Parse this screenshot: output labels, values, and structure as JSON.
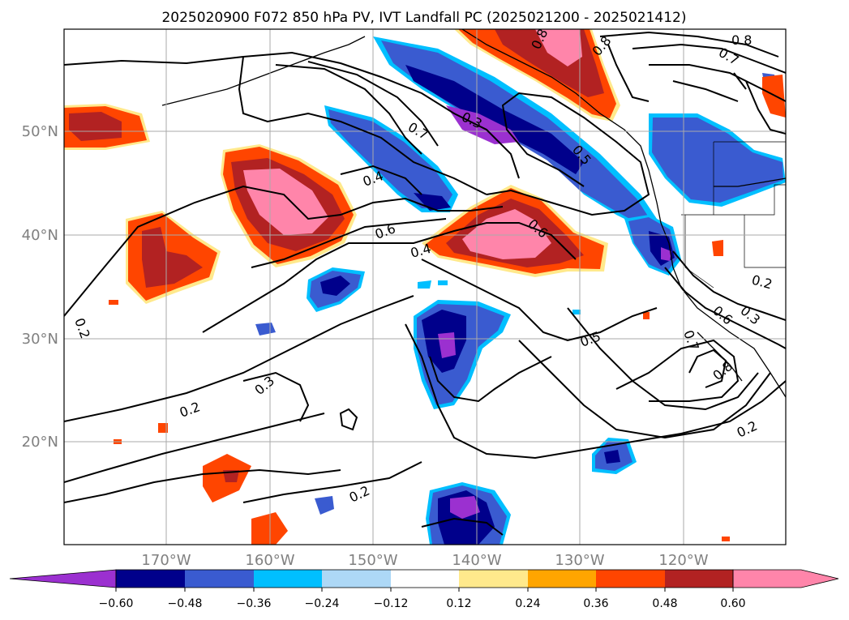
{
  "title": "2025020900 F072 850 hPa PV, IVT Landfall PC (2025021200 - 2025021412)",
  "lat_labels": [
    "50°N",
    "40°N",
    "30°N",
    "20°N"
  ],
  "lon_labels": [
    "170°W",
    "160°W",
    "150°W",
    "140°W",
    "130°W",
    "120°W"
  ],
  "colorbar": {
    "tick_labels": [
      "−0.60",
      "−0.48",
      "−0.36",
      "−0.24",
      "−0.12",
      "0.12",
      "0.24",
      "0.36",
      "0.48",
      "0.60"
    ],
    "colors": [
      "#9b30d0",
      "#00008b",
      "#3a5bd0",
      "#00bfff",
      "#add8f6",
      "#ffffff",
      "#ffe98c",
      "#ffa500",
      "#ff4500",
      "#b22222",
      "#ff85aa",
      "#ff85aa"
    ]
  },
  "contour_labels": [
    "0.8",
    "0.7",
    "0.8",
    "0.8",
    "0.5",
    "0.7",
    "0.4",
    "0.6",
    "0.4",
    "0.6",
    "0.5",
    "0.2",
    "0.3",
    "0.2",
    "0.3",
    "0.2",
    "0.2",
    "0.7",
    "0.6",
    "0.8",
    "0.3",
    "0.2"
  ],
  "fill_colors": {
    "neg_deep": "#9b30d0",
    "neg_dark": "#00008b",
    "neg_mid": "#3a5bd0",
    "neg_light": "#00bfff",
    "pos_orange": "#ff4500",
    "pos_red": "#b22222",
    "pos_pink": "#ff85aa",
    "pos_yellow": "#ffe98c"
  }
}
